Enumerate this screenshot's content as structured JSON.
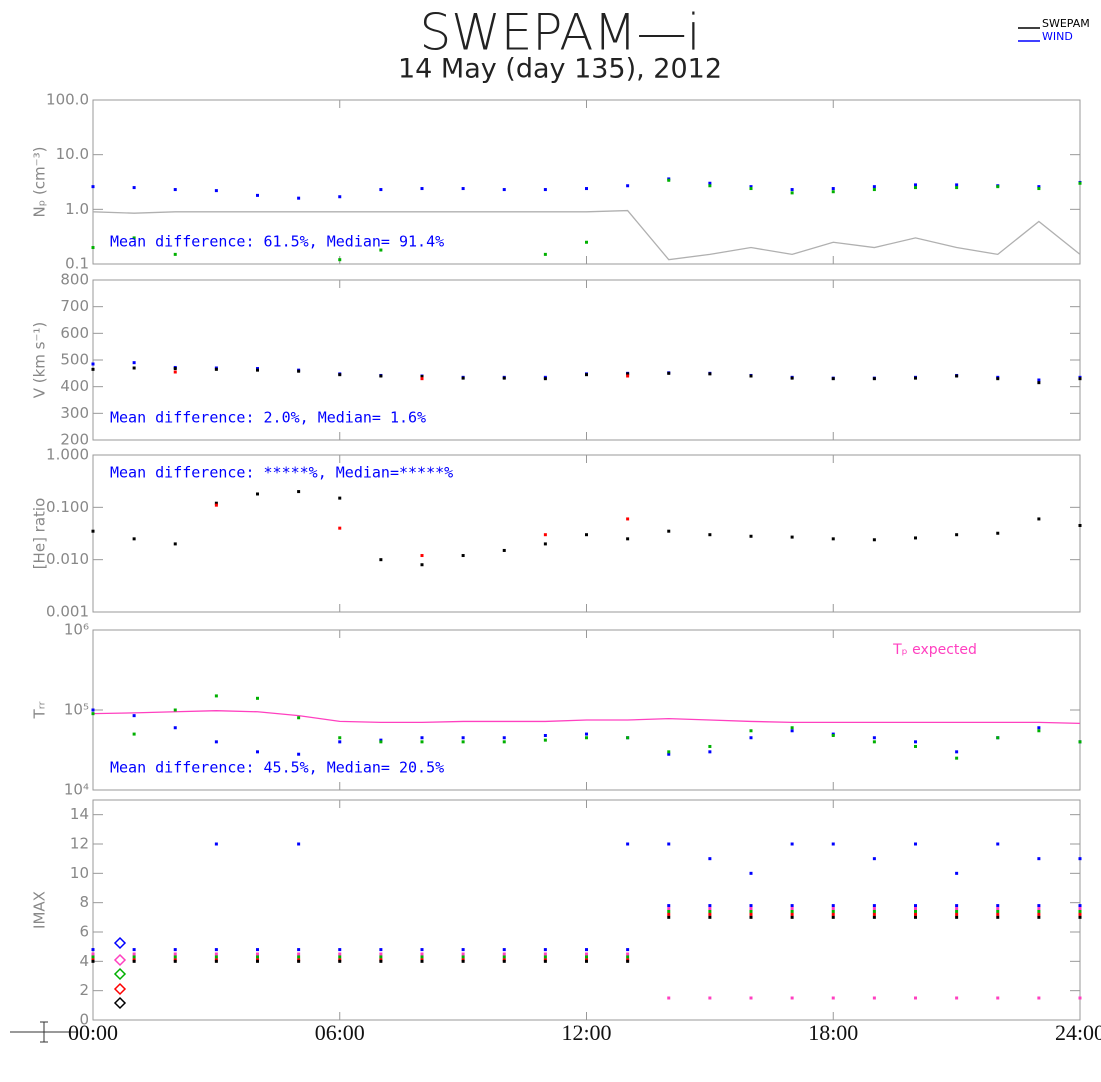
{
  "title": "SWEPAM—i",
  "subtitle": "14 May (day 135), 2012",
  "legend": [
    {
      "name": "SWEPAM",
      "color": "#000000"
    },
    {
      "name": "WIND",
      "color": "#0000ff"
    }
  ],
  "chart_data": [
    {
      "type": "scatter",
      "ylabel": "Nₚ (cm⁻³)",
      "log": true,
      "ylim": [
        0.1,
        100
      ],
      "yticks": [
        0.1,
        {
          "value": 1,
          "label": "1.0"
        },
        {
          "value": 10,
          "label": "10.0"
        },
        {
          "value": 100,
          "label": "100.0"
        }
      ],
      "annotation": "Mean difference:  61.5%, Median= 91.4%",
      "annotation_position": "bottom-left",
      "x": [
        0,
        1,
        2,
        3,
        4,
        5,
        6,
        7,
        8,
        9,
        10,
        11,
        12,
        13,
        14,
        15,
        16,
        17,
        18,
        19,
        20,
        21,
        22,
        23,
        24
      ],
      "series": [
        {
          "color": "#b0b0b0",
          "style": "line",
          "values": [
            0.9,
            0.85,
            0.9,
            0.9,
            0.9,
            0.9,
            0.9,
            0.9,
            0.9,
            0.9,
            0.9,
            0.9,
            0.9,
            0.95,
            0.12,
            0.15,
            0.2,
            0.15,
            0.25,
            0.2,
            0.3,
            0.2,
            0.15,
            0.6,
            0.15
          ]
        },
        {
          "name": "WIND",
          "color": "#0000ff",
          "values": [
            2.6,
            2.5,
            2.3,
            2.2,
            1.8,
            1.6,
            1.7,
            2.3,
            2.4,
            2.4,
            2.3,
            2.3,
            2.4,
            2.7,
            3.6,
            3.0,
            2.6,
            2.3,
            2.4,
            2.6,
            2.8,
            2.8,
            2.7,
            2.6,
            3.1
          ]
        },
        {
          "color": "#00b000",
          "values": [
            0.2,
            0.3,
            0.15,
            null,
            null,
            null,
            0.12,
            0.18,
            null,
            null,
            null,
            0.15,
            0.25,
            null,
            3.4,
            2.7,
            2.4,
            2.0,
            2.1,
            2.3,
            2.5,
            2.5,
            2.6,
            2.4,
            3.0
          ]
        }
      ]
    },
    {
      "type": "scatter",
      "ylabel": "V (km s⁻¹)",
      "log": false,
      "ylim": [
        200,
        800
      ],
      "yticks": [
        200,
        300,
        400,
        500,
        600,
        700,
        800
      ],
      "annotation": "Mean difference:   2.0%, Median=  1.6%",
      "annotation_position": "bottom-left",
      "x": [
        0,
        1,
        2,
        3,
        4,
        5,
        6,
        7,
        8,
        9,
        10,
        11,
        12,
        13,
        14,
        15,
        16,
        17,
        18,
        19,
        20,
        21,
        22,
        23,
        24
      ],
      "series": [
        {
          "name": "WIND",
          "color": "#0000ff",
          "values": [
            485,
            490,
            472,
            470,
            468,
            462,
            448,
            442,
            440,
            435,
            435,
            435,
            448,
            450,
            452,
            450,
            442,
            435,
            432,
            432,
            435,
            442,
            435,
            425,
            435
          ]
        },
        {
          "name": "SWEPAM",
          "color": "#000000",
          "values": [
            465,
            470,
            468,
            465,
            462,
            458,
            445,
            440,
            438,
            432,
            432,
            430,
            445,
            448,
            450,
            448,
            440,
            432,
            430,
            430,
            432,
            440,
            430,
            415,
            430
          ]
        },
        {
          "color": "#ff0000",
          "values": [
            null,
            null,
            455,
            null,
            null,
            null,
            null,
            null,
            430,
            null,
            null,
            null,
            null,
            440,
            null,
            null,
            null,
            null,
            null,
            null,
            null,
            null,
            null,
            null,
            null
          ]
        }
      ]
    },
    {
      "type": "scatter",
      "ylabel": "[He] ratio",
      "log": true,
      "ylim": [
        0.001,
        1
      ],
      "yticks": [
        0.001,
        {
          "value": 0.01,
          "label": "0.010"
        },
        {
          "value": 0.1,
          "label": "0.100"
        },
        {
          "value": 1,
          "label": "1.000"
        }
      ],
      "annotation": "Mean difference: *****%, Median=*****%",
      "annotation_position": "top-left",
      "x": [
        0,
        1,
        2,
        3,
        4,
        5,
        6,
        7,
        8,
        9,
        10,
        11,
        12,
        13,
        14,
        15,
        16,
        17,
        18,
        19,
        20,
        21,
        22,
        23,
        24
      ],
      "series": [
        {
          "name": "SWEPAM",
          "color": "#000000",
          "values": [
            0.035,
            0.025,
            0.02,
            0.12,
            0.18,
            0.2,
            0.15,
            0.01,
            0.008,
            0.012,
            0.015,
            0.02,
            0.03,
            0.025,
            0.035,
            0.03,
            0.028,
            0.027,
            0.025,
            0.024,
            0.026,
            0.03,
            0.032,
            0.06,
            0.045
          ]
        },
        {
          "color": "#ff0000",
          "values": [
            null,
            null,
            null,
            0.11,
            null,
            null,
            0.04,
            null,
            0.012,
            null,
            null,
            0.03,
            null,
            0.06,
            null,
            null,
            null,
            null,
            null,
            null,
            null,
            null,
            null,
            null,
            null
          ]
        }
      ]
    },
    {
      "type": "scatter",
      "ylabel": "Tᵣᵣ",
      "log": true,
      "ylim": [
        10000,
        1000000
      ],
      "yticks": [
        {
          "value": 10000,
          "label": "10⁴"
        },
        {
          "value": 100000,
          "label": "10⁵"
        },
        {
          "value": 1000000,
          "label": "10⁶"
        }
      ],
      "annotation": "Mean difference:  45.5%, Median= 20.5%",
      "annotation_position": "bottom-left",
      "series_labels": true,
      "x": [
        0,
        1,
        2,
        3,
        4,
        5,
        6,
        7,
        8,
        9,
        10,
        11,
        12,
        13,
        14,
        15,
        16,
        17,
        18,
        19,
        20,
        21,
        22,
        23,
        24
      ],
      "series": [
        {
          "name": "Tₚ expected",
          "color": "#ff40c0",
          "style": "line",
          "values": [
            90000,
            92000,
            95000,
            98000,
            95000,
            85000,
            72000,
            70000,
            70000,
            72000,
            72000,
            72000,
            75000,
            75000,
            78000,
            75000,
            72000,
            70000,
            70000,
            70000,
            70000,
            70000,
            70000,
            70000,
            68000
          ]
        },
        {
          "color": "#0000ff",
          "values": [
            100000,
            85000,
            60000,
            40000,
            30000,
            28000,
            40000,
            42000,
            45000,
            45000,
            45000,
            48000,
            50000,
            45000,
            28000,
            30000,
            45000,
            55000,
            50000,
            45000,
            40000,
            30000,
            45000,
            60000,
            40000
          ]
        },
        {
          "color": "#00b000",
          "values": [
            90000,
            50000,
            100000,
            150000,
            140000,
            80000,
            45000,
            40000,
            40000,
            40000,
            40000,
            42000,
            45000,
            45000,
            30000,
            35000,
            55000,
            60000,
            48000,
            40000,
            35000,
            25000,
            45000,
            55000,
            40000
          ]
        }
      ]
    },
    {
      "type": "scatter",
      "ylabel": "IMAX",
      "log": false,
      "ylim": [
        0,
        15
      ],
      "yticks": [
        0,
        2,
        4,
        6,
        8,
        10,
        12,
        14
      ],
      "xlim": [
        0,
        24
      ],
      "xticks": [
        {
          "value": 0,
          "label": "00:00"
        },
        {
          "value": 6,
          "label": "06:00"
        },
        {
          "value": 12,
          "label": "12:00"
        },
        {
          "value": 18,
          "label": "18:00"
        },
        {
          "value": 24,
          "label": "24:00"
        }
      ],
      "x": [
        0,
        1,
        2,
        3,
        4,
        5,
        6,
        7,
        8,
        9,
        10,
        11,
        12,
        13,
        14,
        15,
        16,
        17,
        18,
        19,
        20,
        21,
        22,
        23,
        24
      ],
      "series": [
        {
          "color": "#0000ff",
          "values": [
            4.8,
            4.8,
            4.8,
            4.8,
            4.8,
            4.8,
            4.8,
            4.8,
            4.8,
            4.8,
            4.8,
            4.8,
            4.8,
            4.8,
            7.8,
            7.8,
            7.8,
            7.8,
            7.8,
            7.8,
            7.8,
            7.8,
            7.8,
            7.8,
            7.8
          ]
        },
        {
          "color": "#ff40c0",
          "values": [
            4.5,
            4.5,
            4.5,
            4.5,
            4.5,
            4.5,
            4.5,
            4.5,
            4.5,
            4.5,
            4.5,
            4.5,
            4.5,
            4.5,
            7.6,
            7.6,
            7.6,
            7.6,
            7.6,
            7.6,
            7.6,
            7.6,
            7.6,
            7.6,
            7.6
          ]
        },
        {
          "color": "#00b000",
          "values": [
            4.3,
            4.3,
            4.3,
            4.3,
            4.3,
            4.3,
            4.3,
            4.3,
            4.3,
            4.3,
            4.3,
            4.3,
            4.3,
            4.3,
            7.4,
            7.4,
            7.4,
            7.4,
            7.4,
            7.4,
            7.4,
            7.4,
            7.4,
            7.4,
            7.4
          ]
        },
        {
          "color": "#ff0000",
          "values": [
            4.1,
            4.1,
            4.1,
            4.1,
            4.1,
            4.1,
            4.1,
            4.1,
            4.1,
            4.1,
            4.1,
            4.1,
            4.1,
            4.1,
            7.2,
            7.2,
            7.2,
            7.2,
            7.2,
            7.2,
            7.2,
            7.2,
            7.2,
            7.2,
            7.2
          ]
        },
        {
          "color": "#000000",
          "values": [
            4.0,
            4.0,
            4.0,
            4.0,
            4.0,
            4.0,
            4.0,
            4.0,
            4.0,
            4.0,
            4.0,
            4.0,
            4.0,
            4.0,
            7.0,
            7.0,
            7.0,
            7.0,
            7.0,
            7.0,
            7.0,
            7.0,
            7.0,
            7.0,
            7.0
          ]
        },
        {
          "color": "#0000ff",
          "values": [
            null,
            null,
            null,
            12,
            null,
            12,
            null,
            null,
            null,
            null,
            null,
            null,
            null,
            12,
            12,
            11,
            10,
            12,
            12,
            11,
            12,
            10,
            12,
            11,
            11
          ]
        },
        {
          "color": "#ff40c0",
          "values": [
            null,
            null,
            null,
            null,
            null,
            null,
            null,
            null,
            null,
            null,
            null,
            null,
            null,
            null,
            1.5,
            1.5,
            1.5,
            1.5,
            1.5,
            1.5,
            1.5,
            1.5,
            1.5,
            1.5,
            1.5
          ]
        }
      ]
    }
  ]
}
